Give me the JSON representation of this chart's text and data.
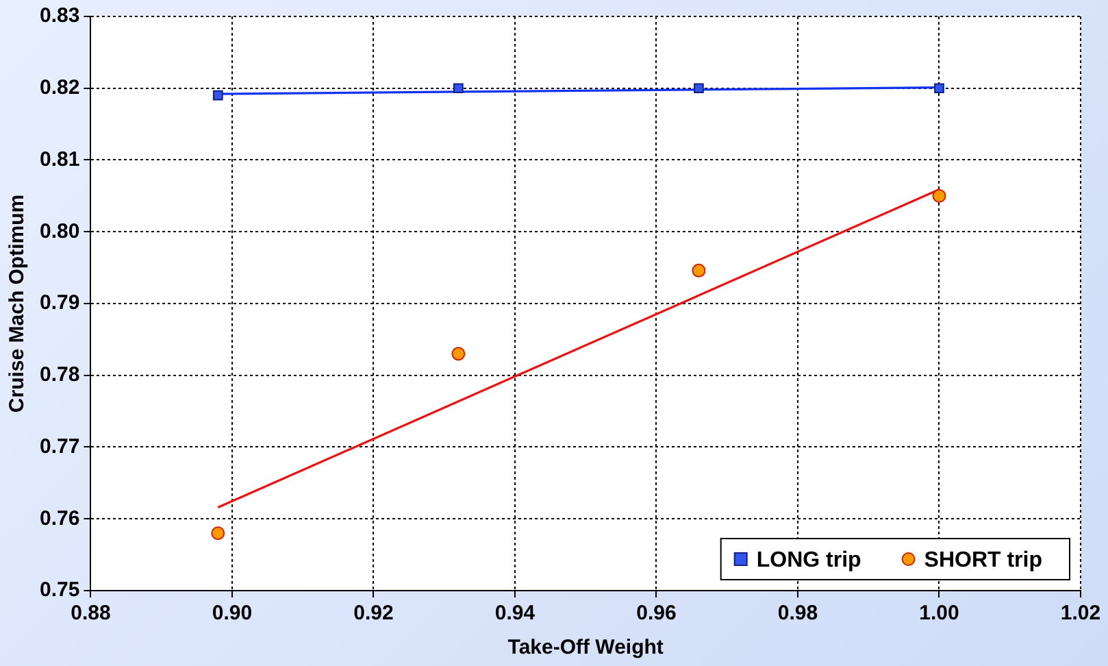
{
  "chart_data": {
    "type": "scatter",
    "xlabel": "Take-Off Weight",
    "ylabel": "Cruise Mach Optimum",
    "xlim": [
      0.88,
      1.02
    ],
    "xticks": [
      {
        "value": 0.88,
        "label": "0.88"
      },
      {
        "value": 0.9,
        "label": "0.90"
      },
      {
        "value": 0.92,
        "label": "0.92"
      },
      {
        "value": 0.94,
        "label": "0.94"
      },
      {
        "value": 0.96,
        "label": "0.96"
      },
      {
        "value": 0.98,
        "label": "0.98"
      },
      {
        "value": 1.0,
        "label": "1.00"
      },
      {
        "value": 1.02,
        "label": "1.02"
      }
    ],
    "ylim": [
      0.75,
      0.83
    ],
    "yticks": [
      {
        "value": 0.75,
        "label": "0.75"
      },
      {
        "value": 0.76,
        "label": "0.76"
      },
      {
        "value": 0.77,
        "label": "0.77"
      },
      {
        "value": 0.78,
        "label": "0.78"
      },
      {
        "value": 0.79,
        "label": "0.79"
      },
      {
        "value": 0.8,
        "label": "0.80"
      },
      {
        "value": 0.81,
        "label": "0.81"
      },
      {
        "value": 0.82,
        "label": "0.82"
      },
      {
        "value": 0.83,
        "label": "0.83"
      }
    ],
    "grid": true,
    "legend": "bottom right",
    "series": [
      {
        "name": "LONG trip",
        "marker": "square",
        "color": "#3355ee",
        "x": [
          0.898,
          0.932,
          0.966,
          1.0
        ],
        "values": [
          0.819,
          0.82,
          0.82,
          0.82
        ]
      },
      {
        "name": "SHORT trip",
        "marker": "circle",
        "color": "#ff9900",
        "x": [
          0.898,
          0.932,
          0.966,
          1.0
        ],
        "values": [
          0.758,
          0.783,
          0.7946,
          0.805
        ]
      },
      {
        "type": "line",
        "marker": "none",
        "color": "#1133ee",
        "x": [
          0.898,
          1.0
        ],
        "values": [
          0.8192,
          0.8201
        ]
      },
      {
        "type": "line",
        "marker": "none",
        "color": "#ee1111",
        "x": [
          0.898,
          1.0
        ],
        "values": [
          0.7616,
          0.8059
        ]
      }
    ]
  }
}
